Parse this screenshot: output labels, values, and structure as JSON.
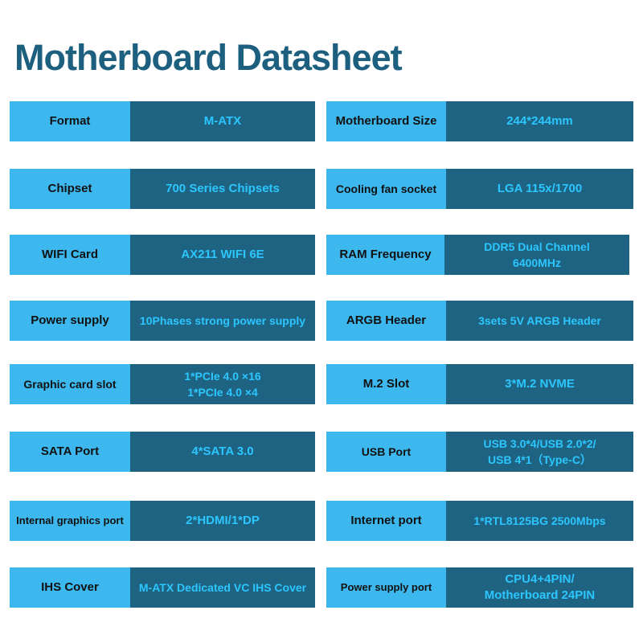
{
  "title": "Motherboard Datasheet",
  "rows": [
    {
      "left": {
        "label": "Format",
        "value": "M-ATX"
      },
      "right": {
        "label": "Motherboard Size",
        "value": "244*244mm"
      }
    },
    {
      "left": {
        "label": "Chipset",
        "value": "700 Series Chipsets"
      },
      "right": {
        "label": "Cooling fan socket",
        "value": "LGA 115x/1700"
      }
    },
    {
      "left": {
        "label": "WIFI Card",
        "value": "AX211 WIFI 6E"
      },
      "right": {
        "label": "RAM Frequency",
        "value": "DDR5 Dual Channel\n6400MHz"
      }
    },
    {
      "left": {
        "label": "Power supply",
        "value": "10Phases strong power supply"
      },
      "right": {
        "label": "ARGB Header",
        "value": "3sets 5V ARGB Header"
      }
    },
    {
      "left": {
        "label": "Graphic card slot",
        "value": "1*PCIe 4.0 ×16\n1*PCIe 4.0 ×4"
      },
      "right": {
        "label": "M.2 Slot",
        "value": "3*M.2 NVME"
      }
    },
    {
      "left": {
        "label": "SATA Port",
        "value": "4*SATA 3.0"
      },
      "right": {
        "label": "USB Port",
        "value": "USB 3.0*4/USB 2.0*2/\nUSB 4*1（Type-C）"
      }
    },
    {
      "left": {
        "label": "Internal graphics port",
        "value": "2*HDMI/1*DP"
      },
      "right": {
        "label": "Internet port",
        "value": "1*RTL8125BG 2500Mbps"
      }
    },
    {
      "left": {
        "label": "IHS Cover",
        "value": "M-ATX Dedicated VC IHS Cover"
      },
      "right": {
        "label": "Power supply port",
        "value": "CPU4+4PIN/\nMotherboard 24PIN"
      }
    }
  ],
  "colors": {
    "title": "#1d5f7f",
    "label_bg": "#3db8ef",
    "value_bg": "#1e6482",
    "value_text": "#2cc6ff"
  }
}
